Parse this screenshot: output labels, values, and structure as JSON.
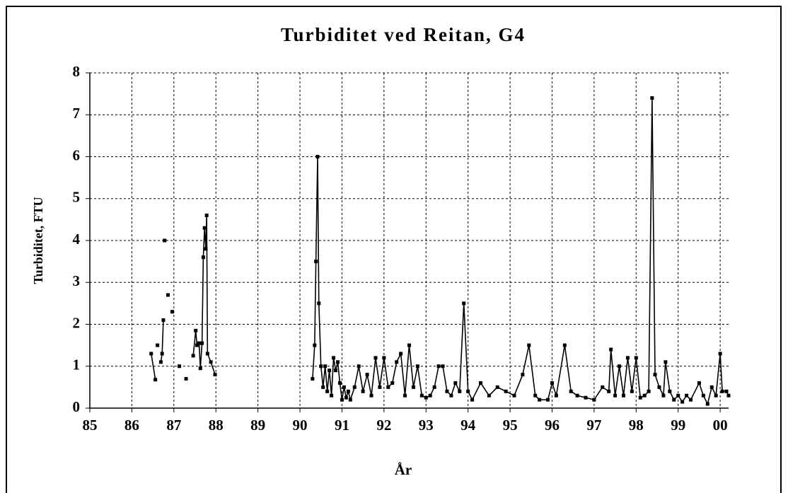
{
  "chart_data": {
    "type": "line",
    "title": "Turbiditet ved Reitan, G4",
    "x_label": "År",
    "y_label": "Turbiditet, FTU",
    "grid": true,
    "xlim": [
      85,
      100.2
    ],
    "xticks": [
      85,
      86,
      87,
      88,
      89,
      90,
      91,
      92,
      93,
      94,
      95,
      96,
      97,
      98,
      99,
      {
        "value": 100,
        "label": "00"
      }
    ],
    "ylim": [
      0,
      8
    ],
    "yticks": [
      0,
      1,
      2,
      3,
      4,
      5,
      6,
      7,
      8
    ],
    "series": [
      {
        "color": "#000000",
        "x": [
          86.46,
          86.56,
          null,
          86.61,
          null,
          86.69,
          86.72,
          86.75,
          null,
          86.78,
          null,
          86.86,
          null,
          86.96,
          null,
          87.13,
          null,
          87.29,
          null,
          87.46,
          87.52,
          87.55,
          87.6,
          87.63,
          87.67,
          87.7,
          87.73,
          87.76,
          87.78,
          87.8,
          87.88,
          87.98,
          null,
          90.3,
          90.35,
          90.38,
          90.42,
          90.45,
          90.5,
          90.55,
          90.6,
          90.65,
          90.7,
          90.75,
          90.8,
          90.85,
          90.9,
          90.95,
          91.0,
          91.05,
          91.1,
          91.15,
          91.2,
          91.3,
          91.4,
          91.5,
          91.6,
          91.7,
          91.8,
          91.9,
          92.0,
          92.1,
          92.2,
          92.3,
          92.4,
          92.5,
          92.6,
          92.7,
          92.8,
          92.9,
          93.0,
          93.1,
          93.2,
          93.3,
          93.4,
          93.5,
          93.6,
          93.7,
          93.8,
          93.9,
          94.0,
          94.1,
          94.3,
          94.5,
          94.7,
          94.9,
          95.1,
          95.3,
          95.45,
          95.6,
          95.7,
          95.9,
          96.0,
          96.1,
          96.3,
          96.45,
          96.6,
          96.8,
          97.0,
          97.2,
          97.35,
          97.4,
          97.5,
          97.6,
          97.7,
          97.8,
          97.9,
          98.0,
          98.1,
          98.2,
          98.3,
          98.38,
          98.45,
          98.55,
          98.65,
          98.7,
          98.8,
          98.9,
          99.0,
          99.1,
          99.2,
          99.3,
          99.5,
          99.6,
          99.7,
          99.8,
          99.9,
          100.0,
          100.05,
          100.15,
          100.2
        ],
        "values": [
          1.3,
          0.68,
          null,
          1.5,
          null,
          1.1,
          1.3,
          2.1,
          null,
          4.0,
          null,
          2.7,
          null,
          2.3,
          null,
          1.0,
          null,
          0.7,
          null,
          1.25,
          1.85,
          1.5,
          1.55,
          0.95,
          1.55,
          3.6,
          4.3,
          3.8,
          4.6,
          1.3,
          1.1,
          0.8,
          null,
          0.7,
          1.5,
          3.5,
          6.0,
          2.5,
          1.0,
          0.5,
          1.0,
          0.4,
          0.9,
          0.3,
          1.2,
          0.9,
          1.1,
          0.6,
          0.2,
          0.5,
          0.25,
          0.4,
          0.2,
          0.5,
          1.0,
          0.4,
          0.8,
          0.3,
          1.2,
          0.5,
          1.2,
          0.5,
          0.6,
          1.1,
          1.3,
          0.3,
          1.5,
          0.5,
          1.0,
          0.3,
          0.25,
          0.3,
          0.5,
          1.0,
          1.0,
          0.4,
          0.3,
          0.6,
          0.4,
          2.5,
          0.4,
          0.2,
          0.6,
          0.3,
          0.5,
          0.4,
          0.3,
          0.8,
          1.5,
          0.3,
          0.2,
          0.2,
          0.6,
          0.3,
          1.5,
          0.4,
          0.3,
          0.25,
          0.2,
          0.5,
          0.4,
          1.4,
          0.3,
          1.0,
          0.3,
          1.2,
          0.4,
          1.2,
          0.25,
          0.3,
          0.4,
          7.4,
          0.8,
          0.5,
          0.3,
          1.1,
          0.4,
          0.2,
          0.3,
          0.15,
          0.3,
          0.2,
          0.6,
          0.3,
          0.1,
          0.5,
          0.3,
          1.3,
          0.4,
          0.4,
          0.3
        ]
      }
    ]
  }
}
